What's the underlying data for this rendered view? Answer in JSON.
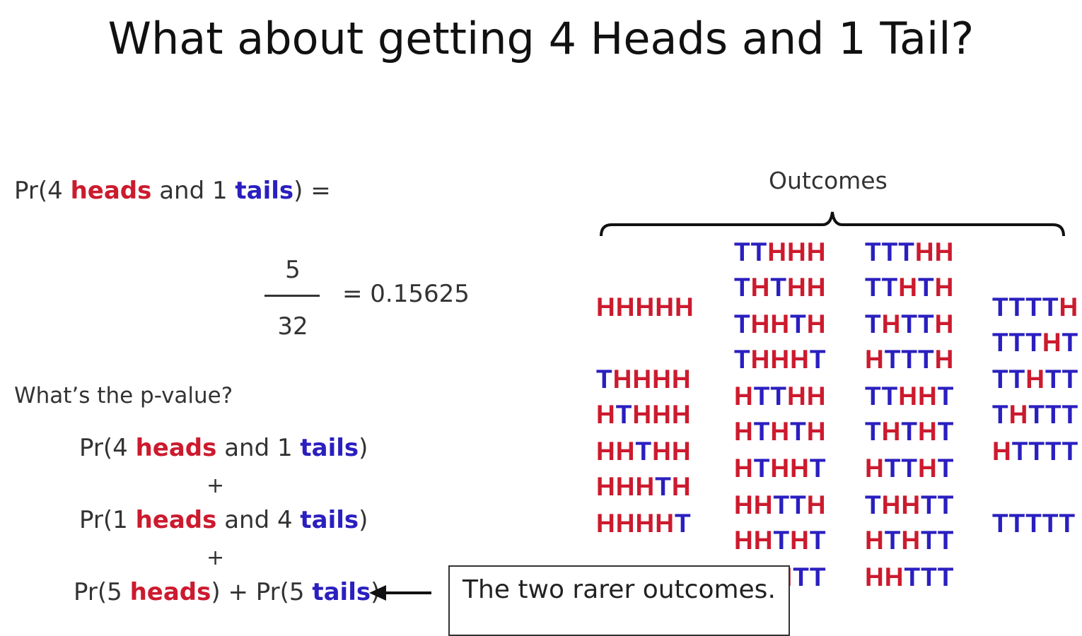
{
  "title": "What about getting 4 Heads and 1 Tail?",
  "colors": {
    "heads": "#cc1a2e",
    "tails": "#2a1fbf"
  },
  "prob_eq": {
    "pre": "Pr(4 ",
    "heads": "heads",
    "mid": " and 1 ",
    "tails": "tails",
    "post": ") ="
  },
  "fraction": {
    "numerator": "5",
    "denominator": "32",
    "result": "= 0.15625"
  },
  "question": "What’s the p-value?",
  "sum_lines": [
    {
      "pre": "Pr(4 ",
      "heads": "heads",
      "mid": " and 1 ",
      "tails": "tails",
      "post": ")"
    },
    {
      "pre": "Pr(1 ",
      "heads": "heads",
      "mid": " and 4 ",
      "tails": "tails",
      "post": ")"
    }
  ],
  "plus": "+",
  "last_line": {
    "p1": "Pr(5 ",
    "heads": "heads",
    "p2": ") + Pr(5 ",
    "tails": "tails",
    "p3": ")"
  },
  "callout": "The two rarer outcomes.",
  "outcomes_label": "Outcomes",
  "outcomes": {
    "col1": [
      "HHHHH",
      "THHHH",
      "HTHHH",
      "HHTHH",
      "HHHTH",
      "HHHHT"
    ],
    "col2": [
      "TTHHH",
      "THTHH",
      "THHTH",
      "THHHT",
      "HTTHH",
      "HTHTH",
      "HTHHT",
      "HHTTH",
      "HHTHT",
      "HHHTT"
    ],
    "col3": [
      "TTTHH",
      "TTHTH",
      "THTTH",
      "HTTTH",
      "TTHHT",
      "THTHT",
      "HTTHT",
      "THHTT",
      "HTHTT",
      "HHTTT"
    ],
    "col4": [
      "TTTTH",
      "TTTHT",
      "TTHTT",
      "THTTT",
      "HTTTT",
      "TTTTT"
    ]
  }
}
